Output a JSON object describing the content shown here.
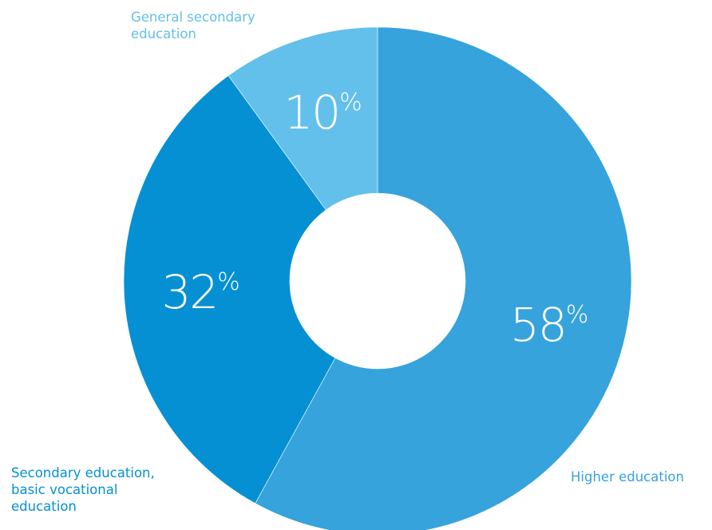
{
  "chart_data": {
    "type": "pie",
    "donut": true,
    "categories": [
      "Higher education",
      "Secondary education,\nbasic vocational\neducation",
      "General secondary\neducation"
    ],
    "values": [
      58,
      32,
      10
    ],
    "value_labels": [
      "58",
      "32",
      "10"
    ],
    "unit_label": "%",
    "colors": [
      "#36a3dc",
      "#0590d3",
      "#63c0eb"
    ],
    "label_colors": [
      "#36a3dc",
      "#0590d3",
      "#63c0eb"
    ],
    "start": "top",
    "direction": "clockwise",
    "legend": "none"
  }
}
